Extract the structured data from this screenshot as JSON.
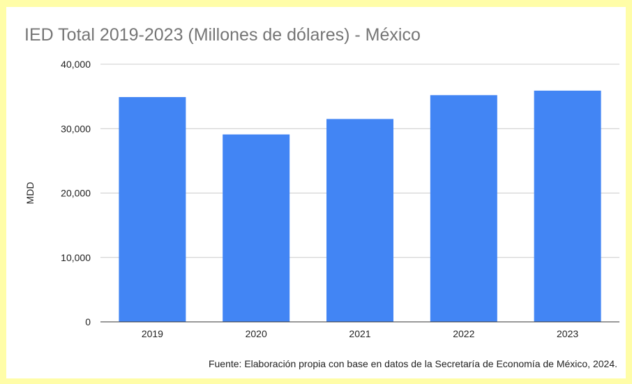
{
  "chart_data": {
    "type": "bar",
    "title": "IED Total 2019-2023 (Millones de dólares) - México",
    "xlabel": "",
    "ylabel": "MDD",
    "categories": [
      "2019",
      "2020",
      "2021",
      "2022",
      "2023"
    ],
    "values": [
      34900,
      29100,
      31500,
      35200,
      35900
    ],
    "ylim": [
      0,
      40000
    ],
    "yticks": [
      0,
      10000,
      20000,
      30000,
      40000
    ],
    "ytick_labels": [
      "0",
      "10,000",
      "20,000",
      "30,000",
      "40,000"
    ],
    "bar_color": "#4285f4",
    "grid": true,
    "legend": "none"
  },
  "source_note": "Fuente: Elaboración propia con base en datos de la Secretaría de Economía de México, 2024.",
  "colors": {
    "background": "#fffda8",
    "card": "#ffffff",
    "gridline": "#cccccc",
    "axis": "#333333"
  }
}
